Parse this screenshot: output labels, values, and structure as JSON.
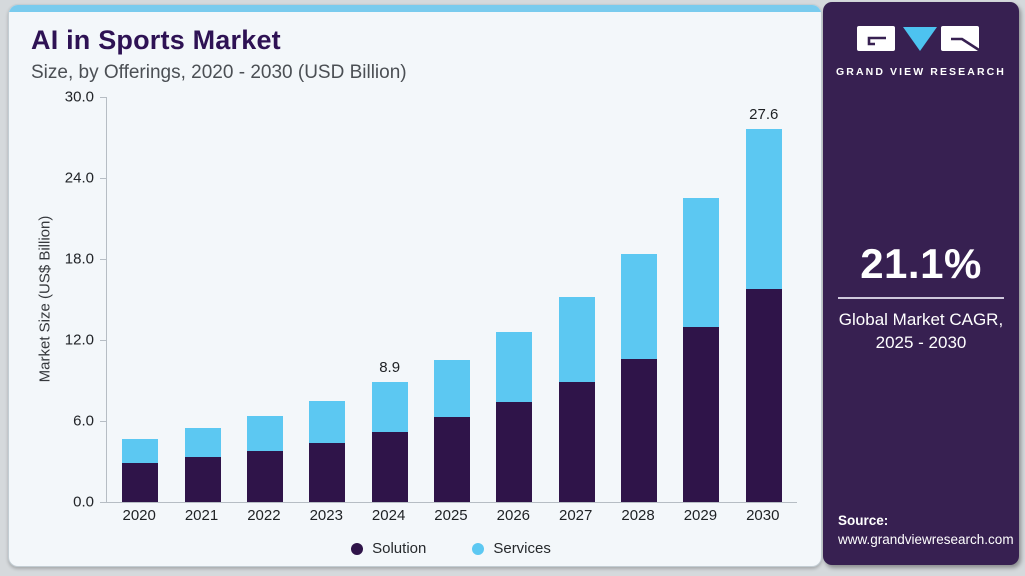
{
  "header": {
    "title": "AI in Sports Market",
    "subtitle": "Size, by Offerings, 2020 - 2030 (USD Billion)"
  },
  "chart_data": {
    "type": "bar",
    "stacked": true,
    "categories": [
      "2020",
      "2021",
      "2022",
      "2023",
      "2024",
      "2025",
      "2026",
      "2027",
      "2028",
      "2029",
      "2030"
    ],
    "series": [
      {
        "name": "Solution",
        "color": "#2f1449",
        "values": [
          2.9,
          3.3,
          3.8,
          4.4,
          5.2,
          6.3,
          7.4,
          8.9,
          10.6,
          13.0,
          15.8
        ]
      },
      {
        "name": "Services",
        "color": "#5cc8f2",
        "values": [
          1.8,
          2.2,
          2.6,
          3.1,
          3.7,
          4.2,
          5.2,
          6.3,
          7.8,
          9.5,
          11.8
        ]
      }
    ],
    "totals": [
      4.7,
      5.5,
      6.4,
      7.5,
      8.9,
      10.5,
      12.6,
      15.2,
      18.4,
      22.5,
      27.6
    ],
    "annotations": [
      {
        "category": "2024",
        "text": "8.9"
      },
      {
        "category": "2030",
        "text": "27.6"
      }
    ],
    "title": "AI in Sports Market Size, by Offerings, 2020 - 2030 (USD Billion)",
    "xlabel": "",
    "ylabel": "Market Size (US$ Billion)",
    "ylim": [
      0,
      30
    ],
    "yticks": [
      0,
      6,
      12,
      18,
      24,
      30
    ],
    "grid": false,
    "legend_position": "bottom"
  },
  "sidebar": {
    "logo": {
      "brand": "GRAND VIEW RESEARCH",
      "triangle_icon": "down-triangle"
    },
    "cagr": {
      "value": "21.1%",
      "caption_line1": "Global Market CAGR,",
      "caption_line2": "2025 - 2030"
    },
    "source": {
      "label": "Source:",
      "url": "www.grandviewresearch.com"
    }
  },
  "colors": {
    "accent_strip": "#79cbee",
    "card_bg": "#f3f7fa",
    "title_text": "#2e1254",
    "sidebar_bg": "#372051",
    "solution": "#2f1449",
    "services": "#5cc8f2",
    "logo_triangle": "#4dc3f0"
  }
}
